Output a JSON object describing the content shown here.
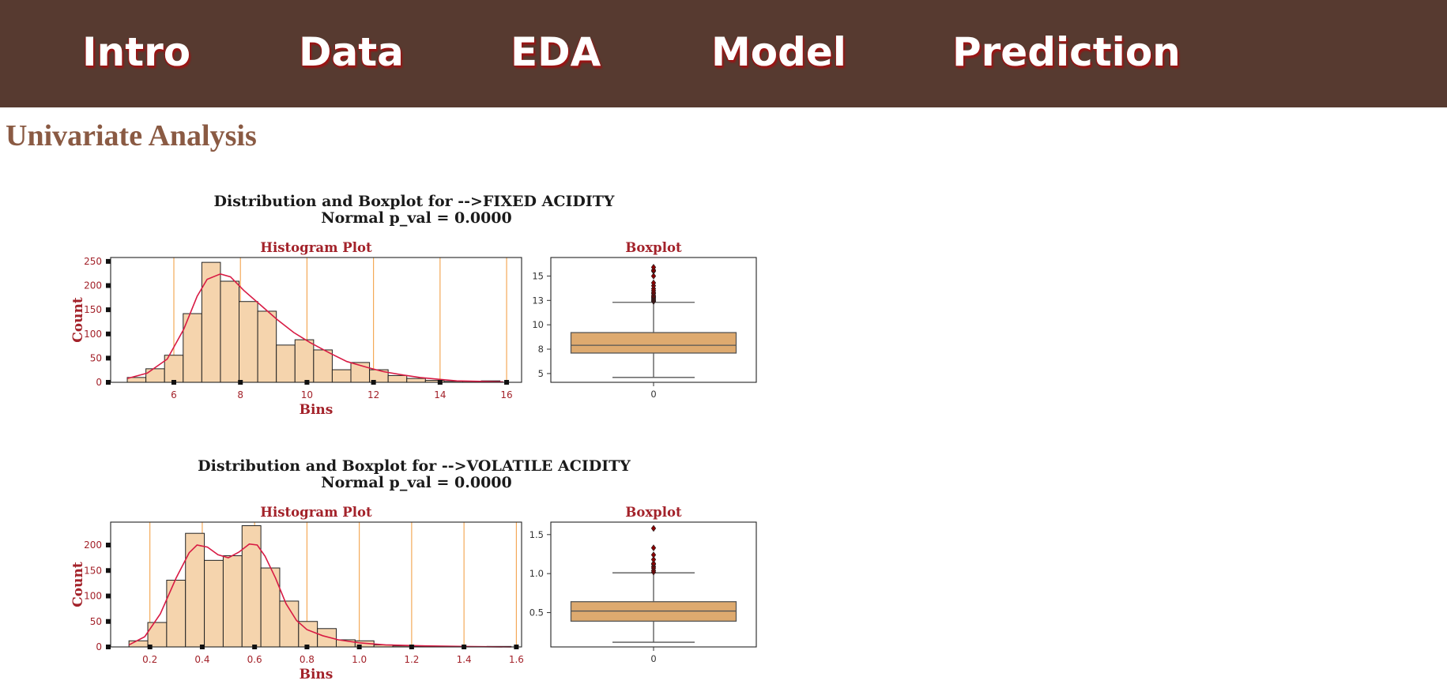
{
  "nav": {
    "items": [
      {
        "label": "Intro"
      },
      {
        "label": "Data"
      },
      {
        "label": "EDA"
      },
      {
        "label": "Model"
      },
      {
        "label": "Prediction"
      }
    ]
  },
  "section_title": "Univariate Analysis",
  "colors": {
    "navbar": "#573a30",
    "nav_text": "#ffffff",
    "nav_shadow": "#9c1212",
    "section_title": "#8a5a43",
    "hist_fill": "#f5d4ad",
    "box_fill": "#deaa6f",
    "kde_line": "#d81b44",
    "vlines": "#f3a24a",
    "label_red": "#a3222a",
    "outlier_fill": "#8b0000"
  },
  "chart_data": [
    {
      "type": "bar",
      "title": "Distribution and Boxplot for -->FIXED ACIDITY",
      "subtitle": "Normal p_val = 0.0000",
      "hist_title": "Histogram Plot",
      "box_title": "Boxplot",
      "xlabel": "Bins",
      "ylabel": "Count",
      "bin_edges": [
        4.6,
        5.16,
        5.72,
        6.28,
        6.84,
        7.4,
        7.96,
        8.52,
        9.08,
        9.64,
        10.2,
        10.76,
        11.32,
        11.88,
        12.44,
        13.0,
        13.56,
        14.12,
        14.68,
        15.24,
        15.8
      ],
      "counts": [
        10,
        28,
        56,
        142,
        248,
        209,
        167,
        147,
        77,
        88,
        67,
        26,
        41,
        26,
        14,
        8,
        4,
        2,
        2,
        3
      ],
      "kde": [
        [
          4.6,
          8
        ],
        [
          5.2,
          19
        ],
        [
          5.8,
          48
        ],
        [
          6.3,
          110
        ],
        [
          6.7,
          178
        ],
        [
          7.0,
          213
        ],
        [
          7.4,
          224
        ],
        [
          7.7,
          218
        ],
        [
          8.1,
          190
        ],
        [
          8.6,
          160
        ],
        [
          9.1,
          130
        ],
        [
          9.6,
          103
        ],
        [
          10.1,
          82
        ],
        [
          10.7,
          60
        ],
        [
          11.2,
          43
        ],
        [
          11.8,
          31
        ],
        [
          12.3,
          22
        ],
        [
          12.9,
          15
        ],
        [
          13.4,
          10
        ],
        [
          14.0,
          6
        ],
        [
          14.5,
          3
        ],
        [
          15.2,
          2
        ],
        [
          15.9,
          1
        ]
      ],
      "xlim": [
        4.1,
        16.45
      ],
      "ylim": [
        0,
        258
      ],
      "xticks": [
        6,
        8,
        10,
        12,
        14,
        16
      ],
      "yticks": [
        0,
        50,
        100,
        150,
        200,
        250
      ],
      "box": {
        "ylim": [
          4.1,
          16.9
        ],
        "yticks": [
          5.0,
          7.5,
          10.0,
          12.5,
          15.0
        ],
        "xtick": "0",
        "q1": 7.1,
        "median": 7.9,
        "q3": 9.2,
        "whisker_low": 4.6,
        "whisker_high": 12.3,
        "outliers": [
          12.4,
          12.5,
          12.6,
          12.7,
          12.8,
          12.9,
          13.0,
          13.2,
          13.3,
          13.5,
          13.7,
          14.0,
          14.3,
          15.0,
          15.5,
          15.6,
          15.9
        ]
      }
    },
    {
      "type": "bar",
      "title": "Distribution and Boxplot for -->VOLATILE ACIDITY",
      "subtitle": "Normal p_val = 0.0000",
      "hist_title": "Histogram Plot",
      "box_title": "Boxplot",
      "xlabel": "Bins",
      "ylabel": "Count",
      "bin_edges": [
        0.12,
        0.192,
        0.264,
        0.336,
        0.408,
        0.48,
        0.552,
        0.624,
        0.696,
        0.768,
        0.84,
        0.912,
        0.984,
        1.056,
        1.128,
        1.2,
        1.272,
        1.344,
        1.416,
        1.488,
        1.58
      ],
      "counts": [
        12,
        48,
        131,
        223,
        170,
        179,
        238,
        155,
        90,
        50,
        36,
        14,
        12,
        4,
        2,
        1,
        1,
        0,
        0,
        1
      ],
      "kde": [
        [
          0.12,
          4
        ],
        [
          0.18,
          20
        ],
        [
          0.24,
          65
        ],
        [
          0.3,
          135
        ],
        [
          0.35,
          185
        ],
        [
          0.38,
          200
        ],
        [
          0.42,
          196
        ],
        [
          0.46,
          181
        ],
        [
          0.5,
          175
        ],
        [
          0.54,
          186
        ],
        [
          0.58,
          202
        ],
        [
          0.61,
          200
        ],
        [
          0.64,
          178
        ],
        [
          0.68,
          135
        ],
        [
          0.72,
          85
        ],
        [
          0.76,
          52
        ],
        [
          0.8,
          34
        ],
        [
          0.86,
          22
        ],
        [
          0.92,
          14
        ],
        [
          1.0,
          8
        ],
        [
          1.1,
          4
        ],
        [
          1.25,
          2
        ],
        [
          1.4,
          1
        ],
        [
          1.58,
          0
        ]
      ],
      "xlim": [
        0.05,
        1.62
      ],
      "ylim": [
        0,
        245
      ],
      "xticks": [
        0.2,
        0.4,
        0.6,
        0.8,
        1.0,
        1.2,
        1.4,
        1.6
      ],
      "yticks": [
        0,
        50,
        100,
        150,
        200
      ],
      "box": {
        "ylim": [
          0.06,
          1.66
        ],
        "yticks": [
          0.5,
          1.0,
          1.5
        ],
        "xtick": "0",
        "q1": 0.39,
        "median": 0.52,
        "q3": 0.64,
        "whisker_low": 0.12,
        "whisker_high": 1.01,
        "outliers": [
          1.02,
          1.04,
          1.07,
          1.09,
          1.12,
          1.13,
          1.18,
          1.24,
          1.33,
          1.58
        ]
      }
    }
  ]
}
